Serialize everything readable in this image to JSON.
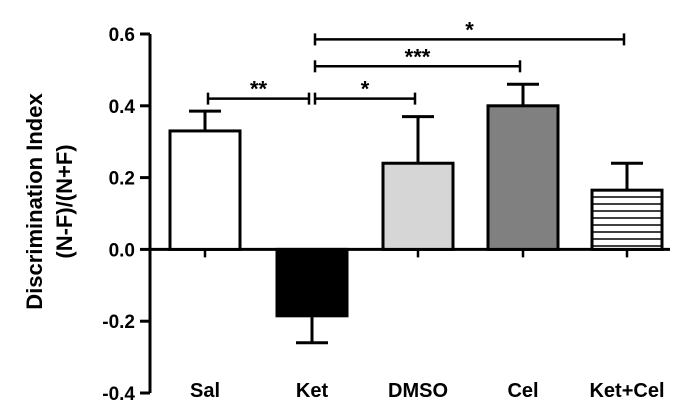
{
  "chart_data": {
    "type": "bar",
    "title": "",
    "xlabel": "",
    "ylabel_lines": [
      "Discrimination Index",
      "(N-F)/(N+F)"
    ],
    "ylim": [
      -0.4,
      0.6
    ],
    "yticks": [
      -0.4,
      -0.2,
      0.0,
      0.2,
      0.4,
      0.6
    ],
    "ytick_labels": [
      "-0.4",
      "-0.2",
      "0.0",
      "0.2",
      "0.4",
      "0.6"
    ],
    "grid": false,
    "categories": [
      "Sal",
      "Ket",
      "DMSO",
      "Cel",
      "Ket+Cel"
    ],
    "values": [
      0.33,
      -0.185,
      0.24,
      0.4,
      0.165
    ],
    "errors": [
      0.055,
      0.075,
      0.13,
      0.06,
      0.075
    ],
    "fills": [
      "white",
      "black",
      "light-gray",
      "dark-gray",
      "horizontal-stripes"
    ],
    "colors": {
      "sal": "#ffffff",
      "ket": "#000000",
      "dmso": "#d6d6d6",
      "cel": "#808080",
      "stripe": "#000000",
      "axis": "#000000"
    },
    "significance": [
      {
        "from": "Sal",
        "to": "Ket",
        "label": "**",
        "y": 0.42
      },
      {
        "from": "Ket",
        "to": "DMSO",
        "label": "*",
        "y": 0.42
      },
      {
        "from": "Ket",
        "to": "Cel",
        "label": "***",
        "y": 0.51
      },
      {
        "from": "Ket",
        "to": "Ket+Cel",
        "label": "*",
        "y": 0.585
      }
    ]
  }
}
